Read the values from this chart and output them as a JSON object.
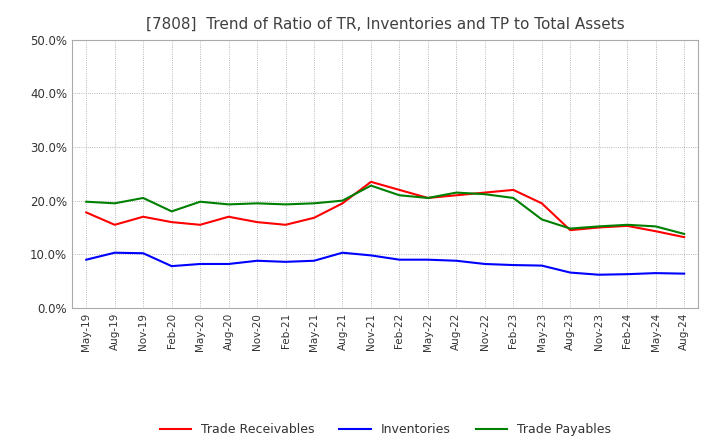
{
  "title": "[7808]  Trend of Ratio of TR, Inventories and TP to Total Assets",
  "x_labels": [
    "May-19",
    "Aug-19",
    "Nov-19",
    "Feb-20",
    "May-20",
    "Aug-20",
    "Nov-20",
    "Feb-21",
    "May-21",
    "Aug-21",
    "Nov-21",
    "Feb-22",
    "May-22",
    "Aug-22",
    "Nov-22",
    "Feb-23",
    "May-23",
    "Aug-23",
    "Nov-23",
    "Feb-24",
    "May-24",
    "Aug-24"
  ],
  "trade_receivables": [
    0.178,
    0.155,
    0.17,
    0.16,
    0.155,
    0.17,
    0.16,
    0.155,
    0.168,
    0.195,
    0.235,
    0.22,
    0.205,
    0.21,
    0.215,
    0.22,
    0.195,
    0.145,
    0.15,
    0.153,
    0.143,
    0.132
  ],
  "inventories": [
    0.09,
    0.103,
    0.102,
    0.078,
    0.082,
    0.082,
    0.088,
    0.086,
    0.088,
    0.103,
    0.098,
    0.09,
    0.09,
    0.088,
    0.082,
    0.08,
    0.079,
    0.066,
    0.062,
    0.063,
    0.065,
    0.064
  ],
  "trade_payables": [
    0.198,
    0.195,
    0.205,
    0.18,
    0.198,
    0.193,
    0.195,
    0.193,
    0.195,
    0.2,
    0.228,
    0.21,
    0.205,
    0.215,
    0.212,
    0.205,
    0.165,
    0.148,
    0.152,
    0.155,
    0.152,
    0.138
  ],
  "tr_color": "#FF0000",
  "inv_color": "#0000FF",
  "tp_color": "#008000",
  "bg_color": "#FFFFFF",
  "plot_bg_color": "#FFFFFF",
  "grid_color": "#999999",
  "title_color": "#404040",
  "ylim": [
    0.0,
    0.5
  ],
  "yticks": [
    0.0,
    0.1,
    0.2,
    0.3,
    0.4,
    0.5
  ],
  "legend_labels": [
    "Trade Receivables",
    "Inventories",
    "Trade Payables"
  ],
  "line_width": 1.5
}
